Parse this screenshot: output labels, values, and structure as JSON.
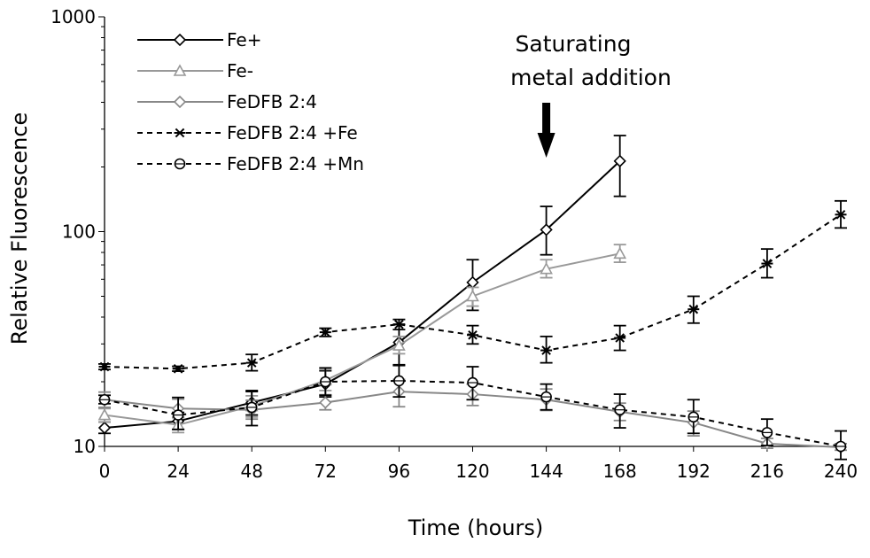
{
  "chart_data": {
    "type": "line",
    "title": "",
    "xlabel": "Time (hours)",
    "ylabel": "Relative Fluorescence",
    "x_ticks": [
      0,
      24,
      48,
      72,
      96,
      120,
      144,
      168,
      192,
      216,
      240
    ],
    "x_tick_labels": [
      "0",
      "24",
      "48",
      "72",
      "96",
      "120",
      "144",
      "168",
      "192",
      "216",
      "240"
    ],
    "xlim": [
      0,
      240
    ],
    "y_scale": "log",
    "ylim": [
      10,
      1000
    ],
    "y_ticks": [
      10,
      100,
      1000
    ],
    "y_tick_labels": [
      "10",
      "100",
      "1000"
    ],
    "grid": false,
    "legend_position": "top-left",
    "annotation": {
      "line1": "Saturating",
      "line2": "metal addition",
      "x": 144,
      "arrow": "down"
    },
    "series": [
      {
        "name": "Fe+",
        "color": "#000000",
        "line": "solid",
        "marker": "diamond",
        "x": [
          0,
          24,
          48,
          72,
          96,
          120,
          144,
          168
        ],
        "y": [
          12.2,
          13.1,
          16.0,
          19.5,
          30.5,
          58.0,
          102.0,
          213.0
        ],
        "err_low": [
          11.5,
          12.0,
          14.0,
          17.0,
          24.0,
          43.0,
          78.0,
          146.0
        ],
        "err_high": [
          13.0,
          14.4,
          18.0,
          22.5,
          37.0,
          74.0,
          131.0,
          280.0
        ]
      },
      {
        "name": "Fe-",
        "color": "#999999",
        "line": "solid",
        "marker": "triangle",
        "x": [
          0,
          24,
          48,
          72,
          96,
          120,
          144,
          168
        ],
        "y": [
          14.0,
          12.6,
          15.4,
          20.3,
          29.5,
          50.0,
          67.0,
          79.0
        ],
        "err_low": [
          13.0,
          11.6,
          13.7,
          18.2,
          27.0,
          45.0,
          61.0,
          72.0
        ],
        "err_high": [
          15.0,
          13.7,
          17.2,
          22.8,
          32.5,
          55.0,
          74.0,
          87.0
        ]
      },
      {
        "name": "FeDFB 2:4",
        "color": "#888888",
        "line": "solid",
        "marker": "diamond",
        "x": [
          0,
          24,
          48,
          72,
          96,
          120,
          144,
          168,
          192,
          216,
          240
        ],
        "y": [
          16.5,
          15.0,
          14.8,
          16.0,
          18.0,
          17.5,
          16.5,
          14.5,
          12.9,
          10.3,
          9.9
        ],
        "err_low": [
          15.2,
          13.6,
          13.4,
          14.8,
          15.3,
          15.5,
          14.7,
          13.2,
          11.2,
          9.8,
          9.6
        ],
        "err_high": [
          17.9,
          16.6,
          16.4,
          17.4,
          20.5,
          19.5,
          18.5,
          15.9,
          14.6,
          10.9,
          10.3
        ]
      },
      {
        "name": "FeDFB 2:4 +Fe",
        "color": "#000000",
        "line": "dashed",
        "marker": "asterisk",
        "x": [
          0,
          24,
          48,
          72,
          96,
          120,
          144,
          168,
          192,
          216,
          240
        ],
        "y": [
          23.5,
          23.0,
          24.5,
          34.0,
          37.0,
          33.0,
          28.0,
          32.0,
          43.5,
          71.0,
          120.0
        ],
        "err_low": [
          22.8,
          22.4,
          22.5,
          32.5,
          35.0,
          30.0,
          24.5,
          28.0,
          37.5,
          61.0,
          104.0
        ],
        "err_high": [
          24.2,
          23.6,
          26.8,
          35.5,
          39.0,
          36.5,
          32.5,
          36.5,
          50.0,
          83.0,
          139.0
        ]
      },
      {
        "name": "FeDFB 2:4 +Mn",
        "color": "#000000",
        "line": "dashed",
        "marker": "circle",
        "x": [
          0,
          24,
          48,
          72,
          96,
          120,
          144,
          168,
          192,
          216,
          240
        ],
        "y": [
          16.5,
          14.0,
          15.2,
          20.0,
          20.2,
          19.8,
          17.0,
          14.8,
          13.7,
          11.6,
          10.0
        ],
        "err_low": [
          15.8,
          12.0,
          12.5,
          17.3,
          17.0,
          16.5,
          14.8,
          12.2,
          11.5,
          10.1,
          8.7
        ],
        "err_high": [
          17.3,
          16.9,
          18.2,
          23.2,
          23.8,
          23.5,
          19.5,
          17.5,
          16.5,
          13.4,
          11.8
        ]
      }
    ]
  }
}
